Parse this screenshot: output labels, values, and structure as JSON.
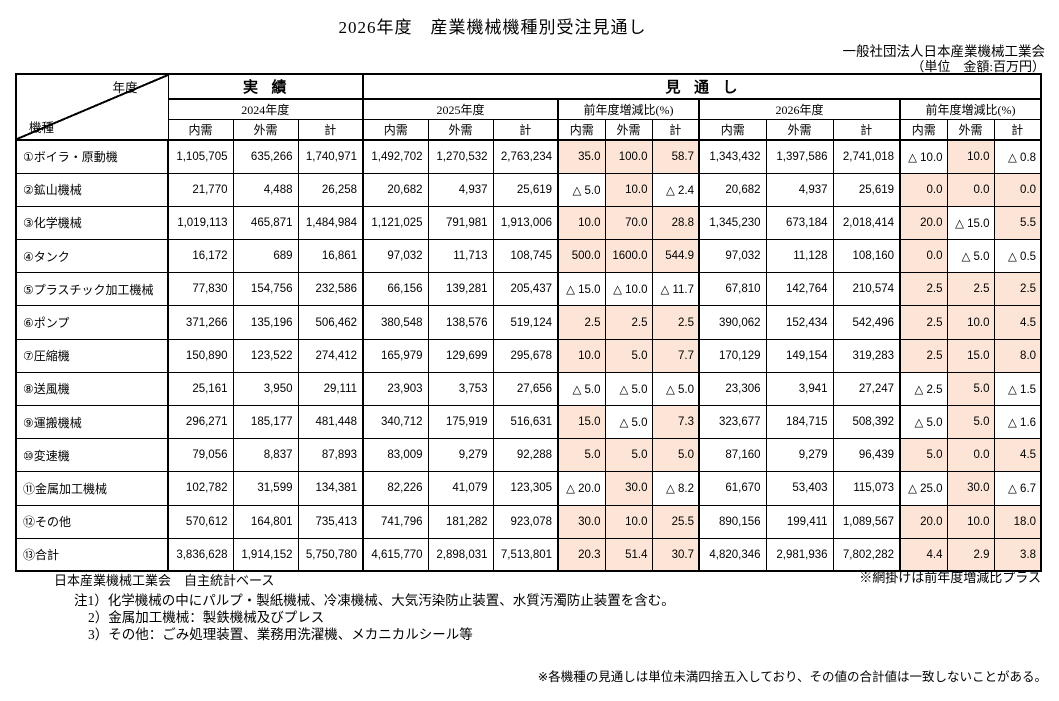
{
  "title": "2026年度　産業機械機種別受注見通し",
  "org": "一般社団法人日本産業機械工業会",
  "unit_label": "（単位　金額:百万円）",
  "colors": {
    "shade": "#fce4d6",
    "border": "#000000"
  },
  "header": {
    "corner_year": "年度",
    "corner_kind": "機種",
    "actual": "実績",
    "forecast": "見通し",
    "fy2024": "2024年度",
    "fy2025": "2025年度",
    "fy2026": "2026年度",
    "yoy": "前年度増減比(%)",
    "domestic": "内需",
    "foreign": "外需",
    "total": "計"
  },
  "rows": [
    {
      "name": "①ボイラ・原動機",
      "fy2024": [
        "1,105,705",
        "635,266",
        "1,740,971"
      ],
      "fy2025": [
        "1,492,702",
        "1,270,532",
        "2,763,234"
      ],
      "yoy2025": [
        "35.0",
        "100.0",
        "58.7"
      ],
      "yoy2025_sh": [
        1,
        1,
        1
      ],
      "fy2026": [
        "1,343,432",
        "1,397,586",
        "2,741,018"
      ],
      "yoy2026": [
        "△ 10.0",
        "10.0",
        "△ 0.8"
      ],
      "yoy2026_sh": [
        0,
        1,
        0
      ]
    },
    {
      "name": "②鉱山機械",
      "fy2024": [
        "21,770",
        "4,488",
        "26,258"
      ],
      "fy2025": [
        "20,682",
        "4,937",
        "25,619"
      ],
      "yoy2025": [
        "△ 5.0",
        "10.0",
        "△ 2.4"
      ],
      "yoy2025_sh": [
        0,
        1,
        0
      ],
      "fy2026": [
        "20,682",
        "4,937",
        "25,619"
      ],
      "yoy2026": [
        "0.0",
        "0.0",
        "0.0"
      ],
      "yoy2026_sh": [
        1,
        1,
        1
      ]
    },
    {
      "name": "③化学機械",
      "fy2024": [
        "1,019,113",
        "465,871",
        "1,484,984"
      ],
      "fy2025": [
        "1,121,025",
        "791,981",
        "1,913,006"
      ],
      "yoy2025": [
        "10.0",
        "70.0",
        "28.8"
      ],
      "yoy2025_sh": [
        1,
        1,
        1
      ],
      "fy2026": [
        "1,345,230",
        "673,184",
        "2,018,414"
      ],
      "yoy2026": [
        "20.0",
        "△ 15.0",
        "5.5"
      ],
      "yoy2026_sh": [
        1,
        0,
        1
      ]
    },
    {
      "name": "④タンク",
      "fy2024": [
        "16,172",
        "689",
        "16,861"
      ],
      "fy2025": [
        "97,032",
        "11,713",
        "108,745"
      ],
      "yoy2025": [
        "500.0",
        "1600.0",
        "544.9"
      ],
      "yoy2025_sh": [
        1,
        1,
        1
      ],
      "fy2026": [
        "97,032",
        "11,128",
        "108,160"
      ],
      "yoy2026": [
        "0.0",
        "△ 5.0",
        "△ 0.5"
      ],
      "yoy2026_sh": [
        1,
        0,
        0
      ]
    },
    {
      "name": "⑤プラスチック加工機械",
      "fy2024": [
        "77,830",
        "154,756",
        "232,586"
      ],
      "fy2025": [
        "66,156",
        "139,281",
        "205,437"
      ],
      "yoy2025": [
        "△ 15.0",
        "△ 10.0",
        "△ 11.7"
      ],
      "yoy2025_sh": [
        0,
        0,
        0
      ],
      "fy2026": [
        "67,810",
        "142,764",
        "210,574"
      ],
      "yoy2026": [
        "2.5",
        "2.5",
        "2.5"
      ],
      "yoy2026_sh": [
        1,
        1,
        1
      ]
    },
    {
      "name": "⑥ポンプ",
      "fy2024": [
        "371,266",
        "135,196",
        "506,462"
      ],
      "fy2025": [
        "380,548",
        "138,576",
        "519,124"
      ],
      "yoy2025": [
        "2.5",
        "2.5",
        "2.5"
      ],
      "yoy2025_sh": [
        1,
        1,
        1
      ],
      "fy2026": [
        "390,062",
        "152,434",
        "542,496"
      ],
      "yoy2026": [
        "2.5",
        "10.0",
        "4.5"
      ],
      "yoy2026_sh": [
        1,
        1,
        1
      ]
    },
    {
      "name": "⑦圧縮機",
      "fy2024": [
        "150,890",
        "123,522",
        "274,412"
      ],
      "fy2025": [
        "165,979",
        "129,699",
        "295,678"
      ],
      "yoy2025": [
        "10.0",
        "5.0",
        "7.7"
      ],
      "yoy2025_sh": [
        1,
        1,
        1
      ],
      "fy2026": [
        "170,129",
        "149,154",
        "319,283"
      ],
      "yoy2026": [
        "2.5",
        "15.0",
        "8.0"
      ],
      "yoy2026_sh": [
        1,
        1,
        1
      ]
    },
    {
      "name": "⑧送風機",
      "fy2024": [
        "25,161",
        "3,950",
        "29,111"
      ],
      "fy2025": [
        "23,903",
        "3,753",
        "27,656"
      ],
      "yoy2025": [
        "△ 5.0",
        "△ 5.0",
        "△ 5.0"
      ],
      "yoy2025_sh": [
        0,
        0,
        0
      ],
      "fy2026": [
        "23,306",
        "3,941",
        "27,247"
      ],
      "yoy2026": [
        "△ 2.5",
        "5.0",
        "△ 1.5"
      ],
      "yoy2026_sh": [
        0,
        1,
        0
      ]
    },
    {
      "name": "⑨運搬機械",
      "fy2024": [
        "296,271",
        "185,177",
        "481,448"
      ],
      "fy2025": [
        "340,712",
        "175,919",
        "516,631"
      ],
      "yoy2025": [
        "15.0",
        "△ 5.0",
        "7.3"
      ],
      "yoy2025_sh": [
        1,
        0,
        1
      ],
      "fy2026": [
        "323,677",
        "184,715",
        "508,392"
      ],
      "yoy2026": [
        "△ 5.0",
        "5.0",
        "△ 1.6"
      ],
      "yoy2026_sh": [
        0,
        1,
        0
      ]
    },
    {
      "name": "⑩変速機",
      "fy2024": [
        "79,056",
        "8,837",
        "87,893"
      ],
      "fy2025": [
        "83,009",
        "9,279",
        "92,288"
      ],
      "yoy2025": [
        "5.0",
        "5.0",
        "5.0"
      ],
      "yoy2025_sh": [
        1,
        1,
        1
      ],
      "fy2026": [
        "87,160",
        "9,279",
        "96,439"
      ],
      "yoy2026": [
        "5.0",
        "0.0",
        "4.5"
      ],
      "yoy2026_sh": [
        1,
        1,
        1
      ]
    },
    {
      "name": "⑪金属加工機械",
      "fy2024": [
        "102,782",
        "31,599",
        "134,381"
      ],
      "fy2025": [
        "82,226",
        "41,079",
        "123,305"
      ],
      "yoy2025": [
        "△ 20.0",
        "30.0",
        "△ 8.2"
      ],
      "yoy2025_sh": [
        0,
        1,
        0
      ],
      "fy2026": [
        "61,670",
        "53,403",
        "115,073"
      ],
      "yoy2026": [
        "△ 25.0",
        "30.0",
        "△ 6.7"
      ],
      "yoy2026_sh": [
        0,
        1,
        0
      ]
    },
    {
      "name": "⑫その他",
      "fy2024": [
        "570,612",
        "164,801",
        "735,413"
      ],
      "fy2025": [
        "741,796",
        "181,282",
        "923,078"
      ],
      "yoy2025": [
        "30.0",
        "10.0",
        "25.5"
      ],
      "yoy2025_sh": [
        1,
        1,
        1
      ],
      "fy2026": [
        "890,156",
        "199,411",
        "1,089,567"
      ],
      "yoy2026": [
        "20.0",
        "10.0",
        "18.0"
      ],
      "yoy2026_sh": [
        1,
        1,
        1
      ]
    },
    {
      "name": "⑬合計",
      "fy2024": [
        "3,836,628",
        "1,914,152",
        "5,750,780"
      ],
      "fy2025": [
        "4,615,770",
        "2,898,031",
        "7,513,801"
      ],
      "yoy2025": [
        "20.3",
        "51.4",
        "30.7"
      ],
      "yoy2025_sh": [
        1,
        1,
        1
      ],
      "fy2026": [
        "4,820,346",
        "2,981,936",
        "7,802,282"
      ],
      "yoy2026": [
        "4.4",
        "2.9",
        "3.8"
      ],
      "yoy2026_sh": [
        1,
        1,
        1
      ]
    }
  ],
  "notes": {
    "source": "日本産業機械工業会　自主統計ベース",
    "shading_legend": "※網掛けは前年度増減比プラス",
    "note1": "注1）化学機械の中にパルプ・製紙機械、冷凍機械、大気汚染防止装置、水質汚濁防止装置を含む。",
    "note2": "2）金属加工機械：製鉄機械及びプレス",
    "note3": "3）その他：ごみ処理装置、業務用洗濯機、メカニカルシール等",
    "rounding": "※各機種の見通しは単位未満四捨五入しており、その値の合計値は一致しないことがある。"
  }
}
